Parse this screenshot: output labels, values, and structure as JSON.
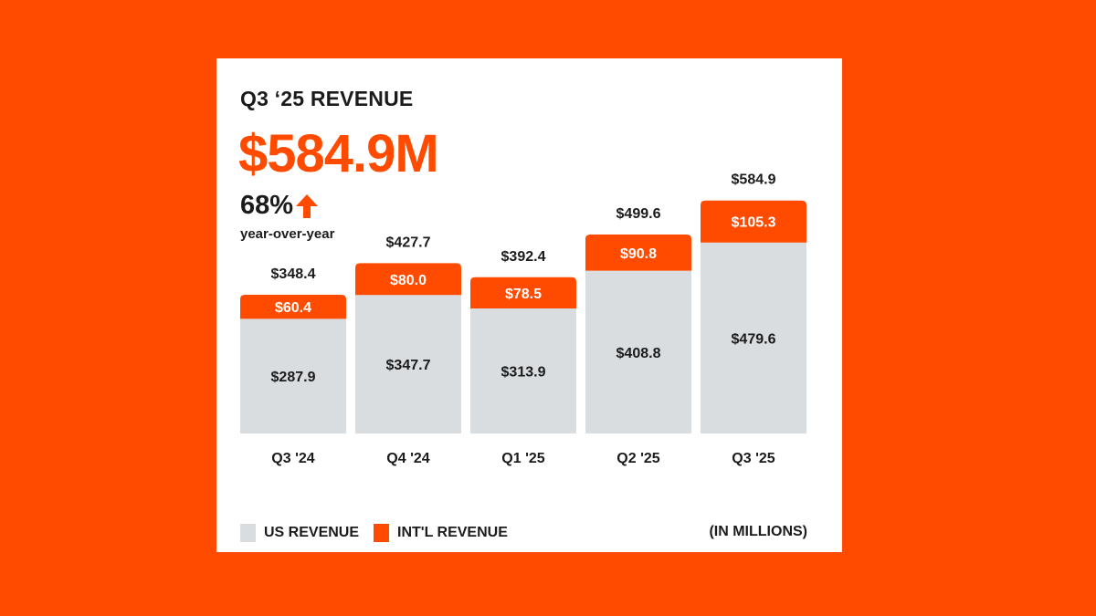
{
  "colors": {
    "background": "#ff4b00",
    "card": "#ffffff",
    "accent": "#ff4b00",
    "us_bar": "#d9dde0",
    "text": "#1b1b1b",
    "label_on_accent": "#ffffff"
  },
  "headline": {
    "value": "$584.9M",
    "growth_percent": "68%",
    "growth_icon": "arrow-up-icon",
    "growth_caption": "year-over-year"
  },
  "legend": {
    "us_label": "US REVENUE",
    "intl_label": "INT'L REVENUE",
    "unit_note": "(IN MILLIONS)"
  },
  "chart_data": {
    "type": "bar",
    "stacked": true,
    "title": "Q3 ‘25 REVENUE",
    "categories": [
      "Q3 '24",
      "Q4 '24",
      "Q1 '25",
      "Q2 '25",
      "Q3 '25"
    ],
    "series": [
      {
        "name": "US REVENUE",
        "values": [
          287.9,
          347.7,
          313.9,
          408.8,
          479.6
        ],
        "labels": [
          "$287.9",
          "$347.7",
          "$313.9",
          "$408.8",
          "$479.6"
        ]
      },
      {
        "name": "INT'L REVENUE",
        "values": [
          60.4,
          80.0,
          78.5,
          90.8,
          105.3
        ],
        "labels": [
          "$60.4",
          "$80.0",
          "$78.5",
          "$90.8",
          "$105.3"
        ]
      }
    ],
    "totals": [
      348.4,
      427.7,
      392.4,
      499.6,
      584.9
    ],
    "total_labels": [
      "$348.4",
      "$427.7",
      "$392.4",
      "$499.6",
      "$584.9"
    ],
    "xlabel": "",
    "ylabel": "",
    "ylim": [
      0,
      600
    ],
    "grid": false,
    "legend_position": "bottom"
  }
}
